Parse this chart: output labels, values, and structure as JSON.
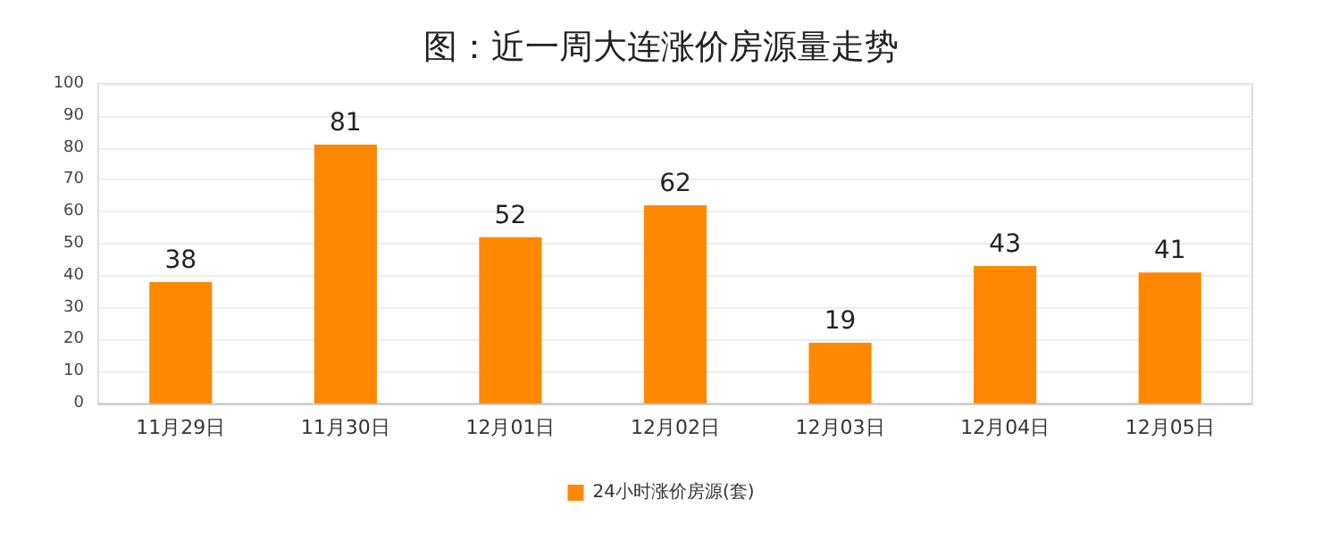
{
  "chart_data": {
    "type": "bar",
    "title": "图：近一周大连涨价房源量走势",
    "categories": [
      "11月29日",
      "11月30日",
      "12月01日",
      "12月02日",
      "12月03日",
      "12月04日",
      "12月05日"
    ],
    "series": [
      {
        "name": "24小时涨价房源(套)",
        "color": "#ff8800",
        "values": [
          38,
          81,
          52,
          62,
          19,
          43,
          41
        ]
      }
    ],
    "ylim": [
      0,
      100
    ],
    "yticks": [
      0,
      10,
      20,
      30,
      40,
      50,
      60,
      70,
      80,
      90,
      100
    ],
    "grid": "y",
    "legend": "bottom",
    "data_labels": true
  }
}
